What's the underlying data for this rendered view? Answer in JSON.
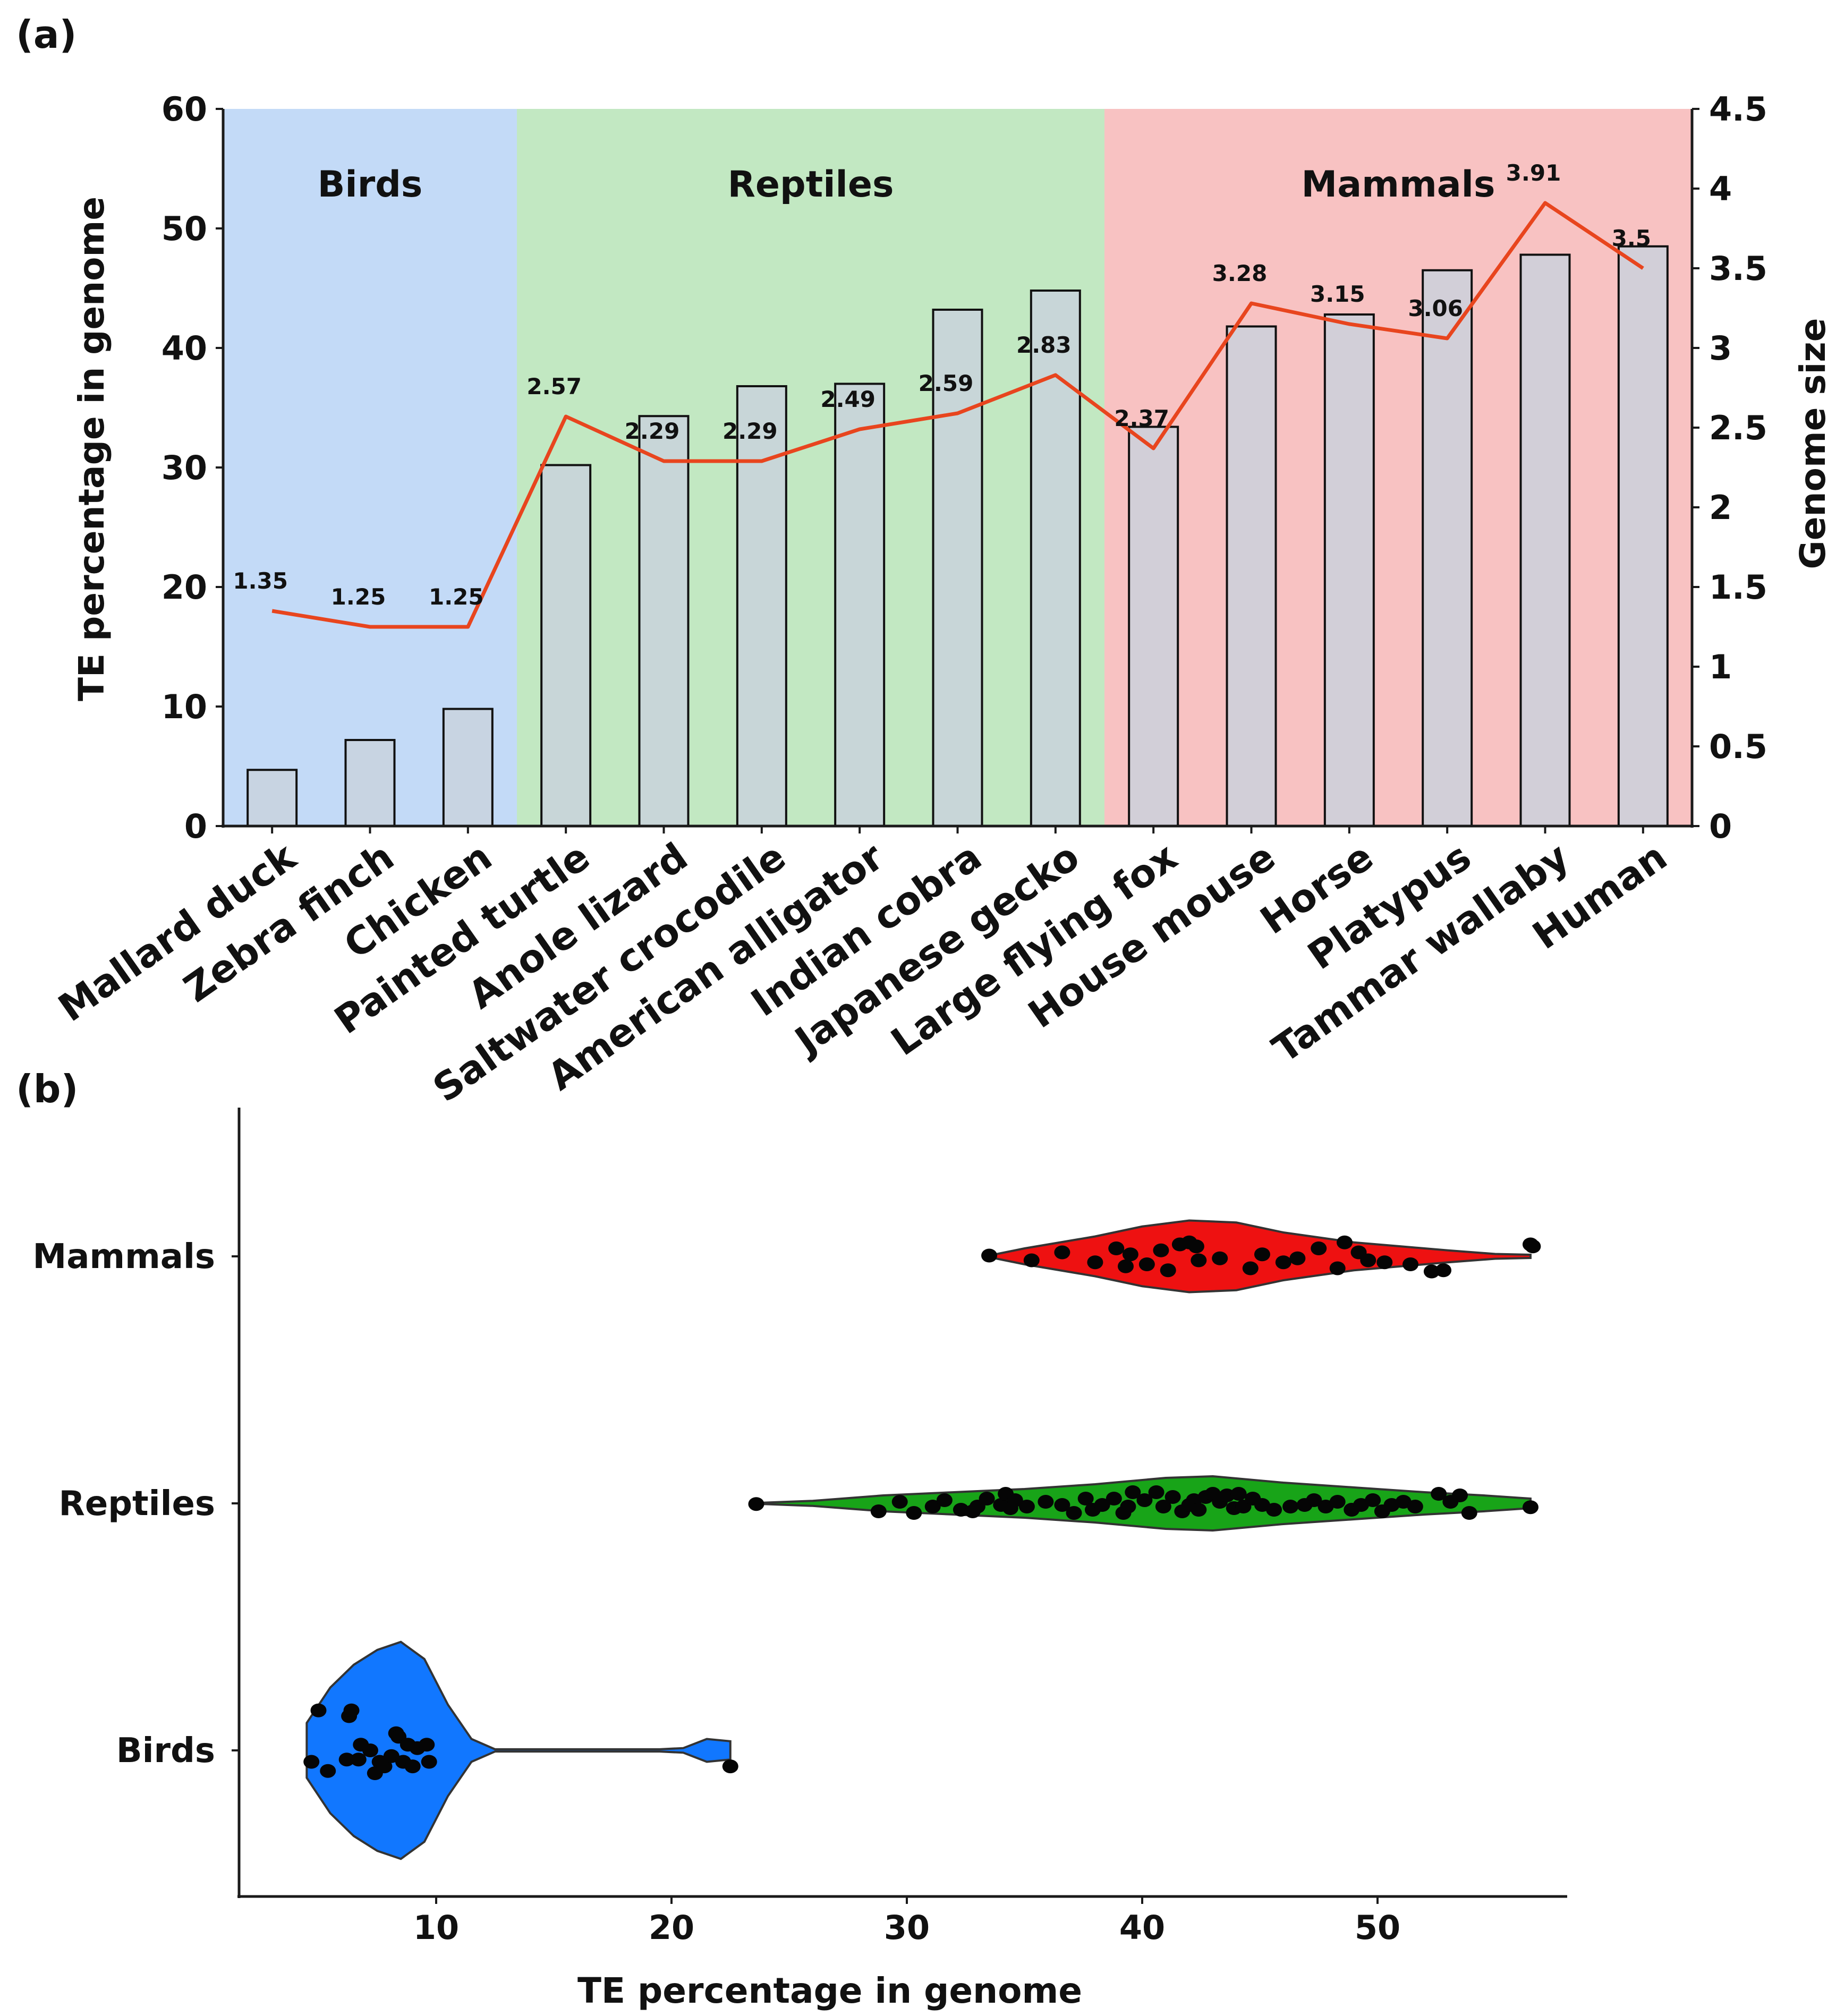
{
  "panel_a": {
    "label": "(a)",
    "groups": [
      {
        "name": "Birds",
        "color": "#c3daf7",
        "first_index": 0,
        "last_index": 2
      },
      {
        "name": "Reptiles",
        "color": "#c2e8c2",
        "first_index": 3,
        "last_index": 8
      },
      {
        "name": "Mammals",
        "color": "#f8c2c2",
        "first_index": 9,
        "last_index": 14
      }
    ]
  },
  "panel_b": {
    "label": "(b)"
  },
  "chart_data": [
    {
      "type": "bar",
      "categories": [
        "Mallard duck",
        "Zebra finch",
        "Chicken",
        "Painted turtle",
        "Anole lizard",
        "Saltwater crocodile",
        "American alligator",
        "Indian cobra",
        "Japanese gecko",
        "Large flying fox",
        "House mouse",
        "Horse",
        "Platypus",
        "Tammar wallaby",
        "Human"
      ],
      "series": [
        {
          "axis": "left",
          "type": "bar",
          "values": [
            4.7,
            7.2,
            9.8,
            30.2,
            34.3,
            36.8,
            37.0,
            43.2,
            44.8,
            33.4,
            41.8,
            42.8,
            46.5,
            47.8,
            48.5
          ],
          "color": "#c9d2dd"
        },
        {
          "axis": "right",
          "type": "line",
          "values": [
            1.35,
            1.25,
            1.25,
            2.57,
            2.29,
            2.29,
            2.49,
            2.59,
            2.83,
            2.37,
            3.28,
            3.15,
            3.06,
            3.91,
            3.5
          ],
          "labels": [
            "1.35",
            "1.25",
            "1.25",
            "2.57",
            "2.29",
            "2.29",
            "2.49",
            "2.59",
            "2.83",
            "2.37",
            "3.28",
            "3.15",
            "3.06",
            "3.91",
            "3.5"
          ],
          "color": "#e8451e"
        }
      ],
      "ylabel": "TE percentage in genome",
      "ylim": [
        0,
        60
      ],
      "yticks": [
        "0",
        "10",
        "20",
        "30",
        "40",
        "50",
        "60"
      ],
      "y2label": "Genome size",
      "y2lim": [
        0,
        4.5
      ],
      "y2ticks": [
        "0",
        "0.5",
        "1",
        "1.5",
        "2",
        "2.5",
        "3",
        "3.5",
        "4",
        "4.5"
      ],
      "grid": false
    },
    {
      "type": "violin",
      "orientation": "horizontal",
      "categories": [
        "Birds",
        "Reptiles",
        "Mammals"
      ],
      "xlabel": "TE percentage in genome",
      "xticks": [
        "10",
        "20",
        "30",
        "40",
        "50"
      ],
      "grid": false,
      "series": [
        {
          "name": "Mammals",
          "color": "#ee1111",
          "range": [
            33.5,
            56.5
          ],
          "density": [
            [
              33.5,
              0.02
            ],
            [
              35,
              0.2
            ],
            [
              38,
              0.5
            ],
            [
              40,
              0.75
            ],
            [
              42,
              0.9
            ],
            [
              44,
              0.85
            ],
            [
              46,
              0.6
            ],
            [
              49,
              0.35
            ],
            [
              51,
              0.25
            ],
            [
              53,
              0.15
            ],
            [
              55,
              0.06
            ],
            [
              56.5,
              0.04
            ]
          ],
          "points": [
            [
              33.5,
              -0.02
            ],
            [
              35.3,
              0.1
            ],
            [
              36.6,
              -0.1
            ],
            [
              38,
              0.15
            ],
            [
              38.9,
              -0.2
            ],
            [
              39.3,
              0.25
            ],
            [
              39.5,
              -0.05
            ],
            [
              40.2,
              0.2
            ],
            [
              40.8,
              -0.15
            ],
            [
              41.1,
              0.35
            ],
            [
              41.6,
              -0.3
            ],
            [
              42.0,
              -0.35
            ],
            [
              42.3,
              -0.25
            ],
            [
              42.4,
              0.1
            ],
            [
              43.3,
              0.05
            ],
            [
              44.6,
              0.3
            ],
            [
              45.1,
              -0.05
            ],
            [
              46.0,
              0.15
            ],
            [
              46.6,
              0.05
            ],
            [
              47.5,
              -0.2
            ],
            [
              48.3,
              0.3
            ],
            [
              48.6,
              -0.35
            ],
            [
              49.2,
              -0.1
            ],
            [
              49.6,
              0.1
            ],
            [
              50.3,
              0.15
            ],
            [
              51.4,
              0.2
            ],
            [
              52.3,
              0.38
            ],
            [
              52.8,
              0.35
            ],
            [
              56.5,
              -0.3
            ],
            [
              56.6,
              -0.25
            ]
          ]
        },
        {
          "name": "Reptiles",
          "color": "#18a418",
          "range": [
            23.5,
            56.5
          ],
          "density": [
            [
              23.5,
              0.01
            ],
            [
              26,
              0.08
            ],
            [
              29,
              0.25
            ],
            [
              32,
              0.35
            ],
            [
              35,
              0.45
            ],
            [
              38,
              0.6
            ],
            [
              41,
              0.8
            ],
            [
              43,
              0.85
            ],
            [
              46,
              0.65
            ],
            [
              49,
              0.5
            ],
            [
              52,
              0.35
            ],
            [
              54.5,
              0.25
            ],
            [
              56.5,
              0.15
            ]
          ],
          "points": [
            [
              23.6,
              0.02
            ],
            [
              28.8,
              0.25
            ],
            [
              29.7,
              -0.05
            ],
            [
              30.3,
              0.3
            ],
            [
              31.1,
              0.1
            ],
            [
              31.6,
              -0.1
            ],
            [
              32.3,
              0.2
            ],
            [
              32.8,
              0.25
            ],
            [
              33.0,
              0.1
            ],
            [
              33.4,
              -0.15
            ],
            [
              34.0,
              0.05
            ],
            [
              34.2,
              -0.3
            ],
            [
              34.4,
              0.15
            ],
            [
              34.6,
              -0.1
            ],
            [
              35.1,
              0.1
            ],
            [
              35.9,
              -0.05
            ],
            [
              36.6,
              0.05
            ],
            [
              37.1,
              0.3
            ],
            [
              37.6,
              -0.15
            ],
            [
              37.9,
              0.2
            ],
            [
              38.3,
              0.05
            ],
            [
              38.8,
              -0.15
            ],
            [
              39.2,
              0.3
            ],
            [
              39.4,
              0.1
            ],
            [
              39.6,
              -0.35
            ],
            [
              40.1,
              -0.1
            ],
            [
              40.6,
              -0.35
            ],
            [
              40.9,
              0.1
            ],
            [
              41.3,
              -0.2
            ],
            [
              41.7,
              0.25
            ],
            [
              42.0,
              0.05
            ],
            [
              42.2,
              -0.1
            ],
            [
              42.4,
              0.2
            ],
            [
              42.7,
              -0.2
            ],
            [
              43.0,
              -0.3
            ],
            [
              43.3,
              -0.05
            ],
            [
              43.6,
              -0.25
            ],
            [
              43.9,
              0.15
            ],
            [
              44.1,
              -0.3
            ],
            [
              44.3,
              0.1
            ],
            [
              44.7,
              -0.15
            ],
            [
              45.1,
              0.05
            ],
            [
              45.6,
              0.2
            ],
            [
              46.3,
              0.1
            ],
            [
              46.9,
              0.05
            ],
            [
              47.3,
              -0.1
            ],
            [
              47.8,
              0.1
            ],
            [
              48.3,
              -0.05
            ],
            [
              48.9,
              0.2
            ],
            [
              49.3,
              0.05
            ],
            [
              49.8,
              -0.1
            ],
            [
              50.2,
              0.25
            ],
            [
              50.6,
              0.05
            ],
            [
              51.1,
              -0.05
            ],
            [
              51.6,
              0.1
            ],
            [
              52.6,
              -0.3
            ],
            [
              53.1,
              -0.05
            ],
            [
              53.5,
              -0.25
            ],
            [
              53.9,
              0.3
            ],
            [
              56.5,
              0.12
            ]
          ]
        },
        {
          "name": "Birds",
          "color": "#1177ff",
          "range": [
            4.5,
            22.5
          ],
          "density": [
            [
              4.5,
              0.24
            ],
            [
              5.5,
              0.55
            ],
            [
              6.5,
              0.75
            ],
            [
              7.5,
              0.88
            ],
            [
              8.5,
              0.95
            ],
            [
              9.5,
              0.8
            ],
            [
              10.5,
              0.4
            ],
            [
              11.5,
              0.1
            ],
            [
              12.5,
              0.01
            ],
            [
              19.5,
              0.01
            ],
            [
              20.5,
              0.02
            ],
            [
              21.5,
              0.1
            ],
            [
              22.5,
              0.08
            ]
          ],
          "points": [
            [
              4.7,
              0.1
            ],
            [
              5.0,
              -0.35
            ],
            [
              5.4,
              0.18
            ],
            [
              6.2,
              0.08
            ],
            [
              6.3,
              -0.3
            ],
            [
              6.4,
              -0.35
            ],
            [
              6.7,
              0.08
            ],
            [
              6.8,
              -0.05
            ],
            [
              7.2,
              0.0
            ],
            [
              7.4,
              0.2
            ],
            [
              7.6,
              0.1
            ],
            [
              7.8,
              0.14
            ],
            [
              8.1,
              0.05
            ],
            [
              8.3,
              -0.15
            ],
            [
              8.4,
              -0.12
            ],
            [
              8.6,
              0.1
            ],
            [
              8.8,
              -0.05
            ],
            [
              9.0,
              0.14
            ],
            [
              9.2,
              -0.02
            ],
            [
              9.6,
              -0.05
            ],
            [
              9.7,
              0.1
            ],
            [
              22.5,
              0.14
            ]
          ]
        }
      ]
    }
  ]
}
